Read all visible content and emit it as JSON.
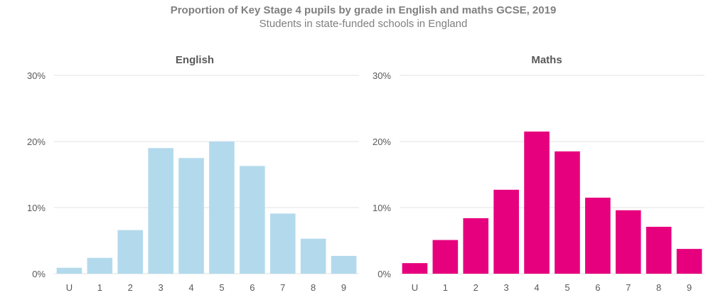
{
  "chart_data": {
    "title": "Proportion of Key Stage 4 pupils by grade in English and maths GCSE, 2019",
    "subtitle": "Students in state-funded schools in England",
    "charts": [
      {
        "type": "bar",
        "title": "English",
        "color": "#b3daec",
        "categories": [
          "U",
          "1",
          "2",
          "3",
          "4",
          "5",
          "6",
          "7",
          "8",
          "9"
        ],
        "values": [
          0.9,
          2.4,
          6.6,
          19.0,
          17.5,
          20.0,
          16.3,
          9.1,
          5.3,
          2.7
        ],
        "ylim": [
          0,
          30
        ],
        "yticks": [
          "0%",
          "10%",
          "20%",
          "30%"
        ],
        "grid": true
      },
      {
        "type": "bar",
        "title": "Maths",
        "color": "#e6007e",
        "categories": [
          "U",
          "1",
          "2",
          "3",
          "4",
          "5",
          "6",
          "7",
          "8",
          "9"
        ],
        "values": [
          1.6,
          5.1,
          8.4,
          12.7,
          21.5,
          18.5,
          11.5,
          9.6,
          7.1,
          3.75
        ],
        "ylim": [
          0,
          30
        ],
        "yticks": [
          "0%",
          "10%",
          "20%",
          "30%"
        ],
        "grid": true
      }
    ]
  }
}
